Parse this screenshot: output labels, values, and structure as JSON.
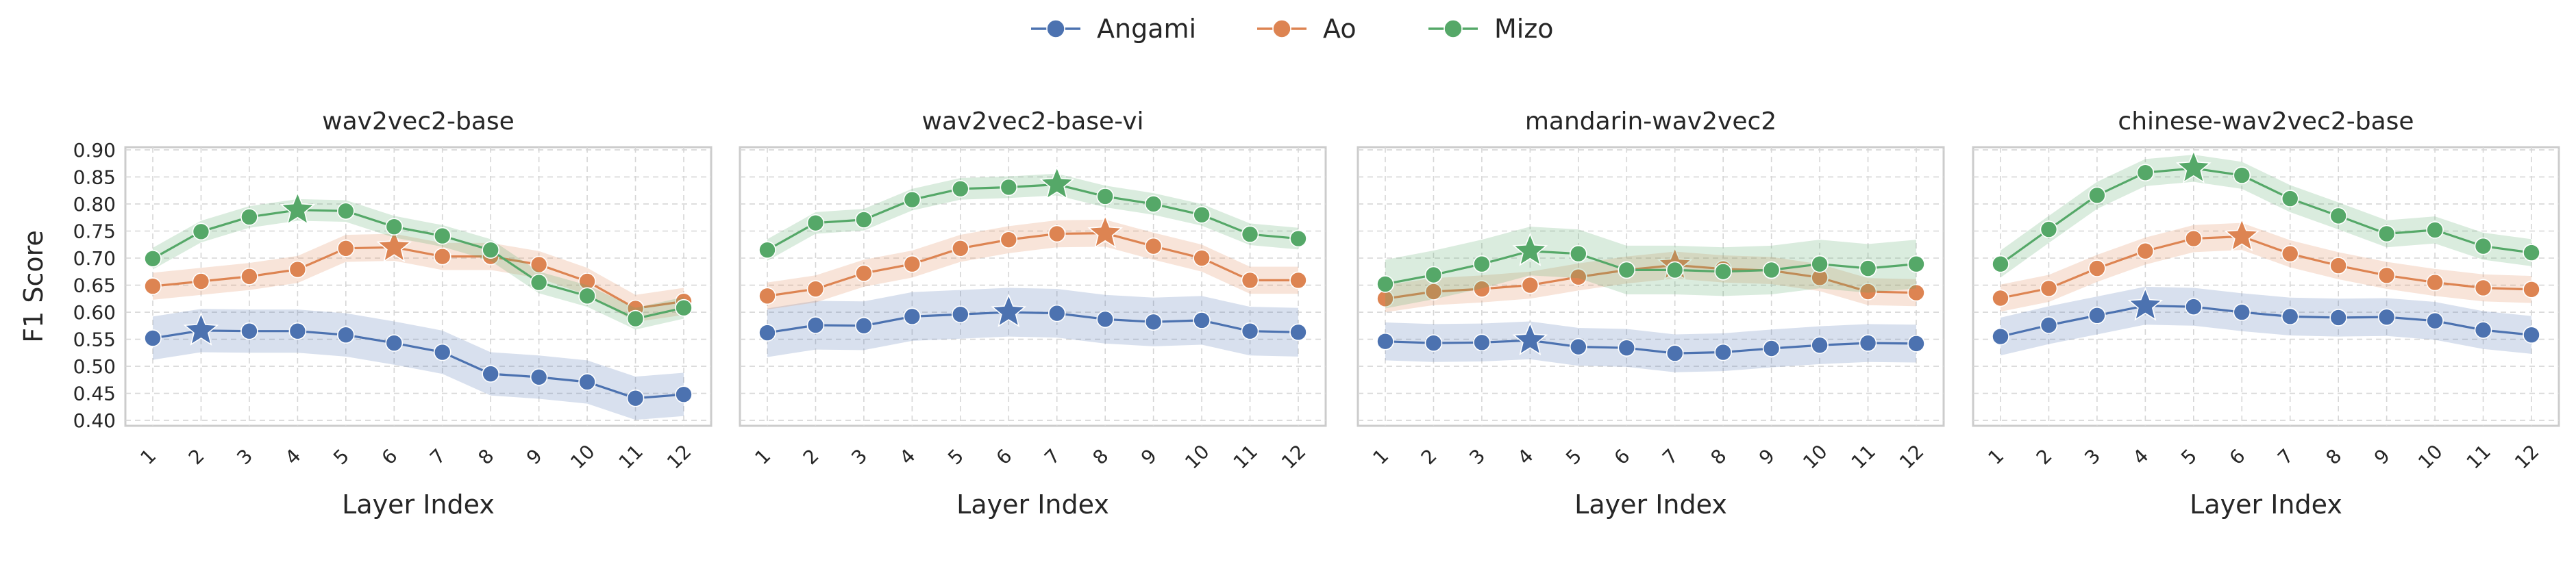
{
  "colors": {
    "Angami": "#4c72b0",
    "Ao": "#dd8452",
    "Mizo": "#55a868"
  },
  "legend": {
    "items": [
      "Angami",
      "Ao",
      "Mizo"
    ],
    "position": "top-center",
    "marker": "circle"
  },
  "chart_data": [
    {
      "type": "line",
      "title": "wav2vec2-base",
      "xlabel": "Layer Index",
      "ylabel": "F1 Score",
      "x": [
        1,
        2,
        3,
        4,
        5,
        6,
        7,
        8,
        9,
        10,
        11,
        12
      ],
      "ylim": [
        0.39,
        0.905
      ],
      "yticks": [
        "0.40",
        "0.45",
        "0.50",
        "0.55",
        "0.60",
        "0.65",
        "0.70",
        "0.75",
        "0.80",
        "0.85",
        "0.90"
      ],
      "grid": true,
      "series": [
        {
          "name": "Angami",
          "values": [
            0.552,
            0.566,
            0.565,
            0.565,
            0.558,
            0.543,
            0.526,
            0.486,
            0.48,
            0.471,
            0.441,
            0.448
          ],
          "band": 0.04,
          "best_layer": 2
        },
        {
          "name": "Ao",
          "values": [
            0.648,
            0.657,
            0.666,
            0.679,
            0.718,
            0.72,
            0.703,
            0.703,
            0.688,
            0.657,
            0.607,
            0.62
          ],
          "band": 0.025,
          "best_layer": 6
        },
        {
          "name": "Mizo",
          "values": [
            0.699,
            0.749,
            0.776,
            0.789,
            0.787,
            0.758,
            0.741,
            0.715,
            0.655,
            0.63,
            0.588,
            0.608
          ],
          "band": 0.02,
          "best_layer": 4
        }
      ]
    },
    {
      "type": "line",
      "title": "wav2vec2-base-vi",
      "xlabel": "Layer Index",
      "ylabel": "",
      "x": [
        1,
        2,
        3,
        4,
        5,
        6,
        7,
        8,
        9,
        10,
        11,
        12
      ],
      "ylim": [
        0.39,
        0.905
      ],
      "grid": true,
      "series": [
        {
          "name": "Angami",
          "values": [
            0.562,
            0.576,
            0.575,
            0.592,
            0.596,
            0.6,
            0.598,
            0.587,
            0.582,
            0.585,
            0.565,
            0.563
          ],
          "band": 0.045,
          "best_layer": 6
        },
        {
          "name": "Ao",
          "values": [
            0.63,
            0.643,
            0.672,
            0.689,
            0.718,
            0.734,
            0.745,
            0.746,
            0.722,
            0.7,
            0.659,
            0.659
          ],
          "band": 0.025,
          "best_layer": 8
        },
        {
          "name": "Mizo",
          "values": [
            0.715,
            0.765,
            0.771,
            0.808,
            0.828,
            0.831,
            0.836,
            0.814,
            0.8,
            0.78,
            0.744,
            0.736
          ],
          "band": 0.02,
          "best_layer": 7
        }
      ]
    },
    {
      "type": "line",
      "title": "mandarin-wav2vec2",
      "xlabel": "Layer Index",
      "ylabel": "",
      "x": [
        1,
        2,
        3,
        4,
        5,
        6,
        7,
        8,
        9,
        10,
        11,
        12
      ],
      "ylim": [
        0.39,
        0.905
      ],
      "grid": true,
      "series": [
        {
          "name": "Angami",
          "values": [
            0.546,
            0.543,
            0.544,
            0.548,
            0.536,
            0.534,
            0.524,
            0.526,
            0.533,
            0.539,
            0.543,
            0.542
          ],
          "band": 0.035,
          "best_layer": 4
        },
        {
          "name": "Ao",
          "values": [
            0.625,
            0.638,
            0.643,
            0.65,
            0.665,
            0.678,
            0.687,
            0.68,
            0.677,
            0.664,
            0.638,
            0.636
          ],
          "band": 0.025,
          "best_layer": 7
        },
        {
          "name": "Mizo",
          "values": [
            0.652,
            0.669,
            0.689,
            0.713,
            0.708,
            0.678,
            0.678,
            0.675,
            0.678,
            0.689,
            0.681,
            0.689
          ],
          "band": 0.045,
          "best_layer": 4
        }
      ]
    },
    {
      "type": "line",
      "title": "chinese-wav2vec2-base",
      "xlabel": "Layer Index",
      "ylabel": "",
      "x": [
        1,
        2,
        3,
        4,
        5,
        6,
        7,
        8,
        9,
        10,
        11,
        12
      ],
      "ylim": [
        0.39,
        0.905
      ],
      "grid": true,
      "series": [
        {
          "name": "Angami",
          "values": [
            0.555,
            0.576,
            0.594,
            0.612,
            0.61,
            0.6,
            0.592,
            0.59,
            0.591,
            0.584,
            0.567,
            0.558
          ],
          "band": 0.035,
          "best_layer": 4
        },
        {
          "name": "Ao",
          "values": [
            0.626,
            0.644,
            0.681,
            0.713,
            0.736,
            0.74,
            0.708,
            0.686,
            0.668,
            0.655,
            0.645,
            0.642
          ],
          "band": 0.025,
          "best_layer": 6
        },
        {
          "name": "Mizo",
          "values": [
            0.689,
            0.753,
            0.816,
            0.858,
            0.866,
            0.853,
            0.81,
            0.778,
            0.745,
            0.752,
            0.722,
            0.71
          ],
          "band": 0.025,
          "best_layer": 5
        }
      ]
    }
  ]
}
